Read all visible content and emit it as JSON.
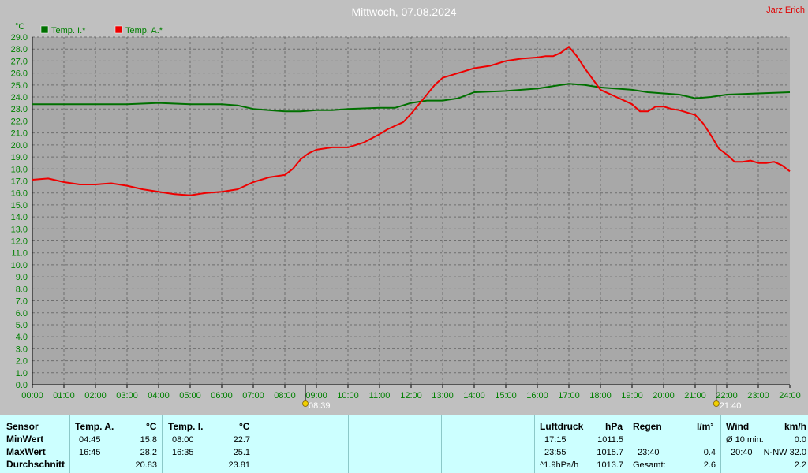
{
  "header": {
    "title": "Mittwoch, 07.08.2024",
    "author": "Jarz Erich"
  },
  "colors": {
    "inside": "#007000",
    "outside": "#ee0000",
    "plot_bg": "#a8a8a8",
    "axis_text": "#008000",
    "panel_bg": "#ccffff"
  },
  "chart_data": {
    "type": "line",
    "title": "Mittwoch, 07.08.2024",
    "ylabel": "°C",
    "ylim": [
      0,
      29
    ],
    "y_ticks": [
      "0.0",
      "1.0",
      "2.0",
      "3.0",
      "4.0",
      "5.0",
      "6.0",
      "7.0",
      "8.0",
      "9.0",
      "10.0",
      "11.0",
      "12.0",
      "13.0",
      "14.0",
      "15.0",
      "16.0",
      "17.0",
      "18.0",
      "19.0",
      "20.0",
      "21.0",
      "22.0",
      "23.0",
      "24.0",
      "25.0",
      "26.0",
      "27.0",
      "28.0",
      "29.0"
    ],
    "xlim": [
      0,
      24
    ],
    "x_ticks": [
      "00:00",
      "01:00",
      "02:00",
      "03:00",
      "04:00",
      "05:00",
      "06:00",
      "07:00",
      "08:00",
      "09:00",
      "10:00",
      "11:00",
      "12:00",
      "13:00",
      "14:00",
      "15:00",
      "16:00",
      "17:00",
      "18:00",
      "19:00",
      "20:00",
      "21:00",
      "22:00",
      "23:00",
      "24:00"
    ],
    "grid": true,
    "legend": "top-left",
    "sunrise": {
      "time": 8.65,
      "label": "08:39"
    },
    "sunset": {
      "time": 21.67,
      "label": "21:40"
    },
    "series": [
      {
        "name": "Temp. I.*",
        "color": "#007000",
        "x": [
          0,
          1,
          2,
          3,
          4,
          5,
          6,
          6.5,
          7,
          7.5,
          8,
          8.5,
          9,
          9.5,
          10,
          11,
          11.5,
          12,
          12.5,
          13,
          13.5,
          14,
          15,
          16,
          16.5,
          17,
          17.5,
          18,
          18.5,
          19,
          19.5,
          20,
          20.5,
          21,
          21.5,
          22,
          23,
          24
        ],
        "y": [
          23.4,
          23.4,
          23.4,
          23.4,
          23.5,
          23.4,
          23.4,
          23.3,
          23.0,
          22.9,
          22.8,
          22.8,
          22.9,
          22.9,
          23.0,
          23.1,
          23.1,
          23.5,
          23.7,
          23.7,
          23.9,
          24.4,
          24.5,
          24.7,
          24.9,
          25.1,
          25.0,
          24.8,
          24.7,
          24.6,
          24.4,
          24.3,
          24.2,
          23.9,
          24.0,
          24.2,
          24.3,
          24.4
        ]
      },
      {
        "name": "Temp. A.*",
        "color": "#ee0000",
        "x": [
          0,
          0.5,
          1,
          1.5,
          2,
          2.5,
          3,
          3.5,
          4,
          4.5,
          5,
          5.5,
          6,
          6.5,
          7,
          7.5,
          8,
          8.25,
          8.5,
          8.75,
          9,
          9.5,
          10,
          10.5,
          11,
          11.25,
          11.5,
          11.75,
          12,
          12.25,
          12.5,
          12.75,
          13,
          13.5,
          14,
          14.5,
          15,
          15.5,
          16,
          16.25,
          16.5,
          16.75,
          17,
          17.25,
          17.5,
          18,
          18.5,
          19,
          19.25,
          19.5,
          19.75,
          20,
          20.25,
          20.5,
          21,
          21.25,
          21.5,
          21.75,
          22,
          22.25,
          22.5,
          22.75,
          23,
          23.25,
          23.5,
          23.75,
          24
        ],
        "y": [
          17.1,
          17.2,
          16.9,
          16.7,
          16.7,
          16.8,
          16.6,
          16.3,
          16.1,
          15.9,
          15.8,
          16.0,
          16.1,
          16.3,
          16.9,
          17.3,
          17.5,
          18.0,
          18.8,
          19.3,
          19.6,
          19.8,
          19.8,
          20.2,
          20.9,
          21.3,
          21.6,
          21.9,
          22.6,
          23.4,
          24.2,
          25.0,
          25.6,
          26.0,
          26.4,
          26.6,
          27.0,
          27.2,
          27.3,
          27.4,
          27.4,
          27.7,
          28.2,
          27.4,
          26.4,
          24.6,
          24.0,
          23.4,
          22.8,
          22.8,
          23.2,
          23.2,
          23.0,
          22.9,
          22.5,
          21.8,
          20.8,
          19.7,
          19.2,
          18.6,
          18.6,
          18.7,
          18.5,
          18.5,
          18.6,
          18.3,
          17.8
        ]
      }
    ]
  },
  "table": {
    "labels": {
      "sensor": "Sensor",
      "min": "MinWert",
      "max": "MaxWert",
      "avg": "Durchschnitt"
    },
    "temp_a": {
      "header": "Temp. A.",
      "unit": "°C",
      "min_time": "04:45",
      "min_value": "15.8",
      "max_time": "16:45",
      "max_value": "28.2",
      "avg": "20.83"
    },
    "temp_i": {
      "header": "Temp. I.",
      "unit": "°C",
      "min_time": "08:00",
      "min_value": "22.7",
      "max_time": "16:35",
      "max_value": "25.1",
      "avg": "23.81"
    },
    "pressure": {
      "header": "Luftdruck",
      "unit": "hPa",
      "min_time": "17:15",
      "min_value": "1011.5",
      "max_time": "23:55",
      "max_value": "1015.7",
      "trend": "^1.9hPa/h",
      "avg": "1013.7"
    },
    "rain": {
      "header": "Regen",
      "unit": "l/m²",
      "max_time": "23:40",
      "max_value": "0.4",
      "total_label": "Gesamt:",
      "total": "2.6"
    },
    "wind": {
      "header": "Wind",
      "unit": "km/h",
      "avg_label": "Ø 10 min.",
      "avg_value": "0.0",
      "max_time": "20:40",
      "max_value": "N-NW 32.0",
      "avg_total": "2.2"
    }
  }
}
